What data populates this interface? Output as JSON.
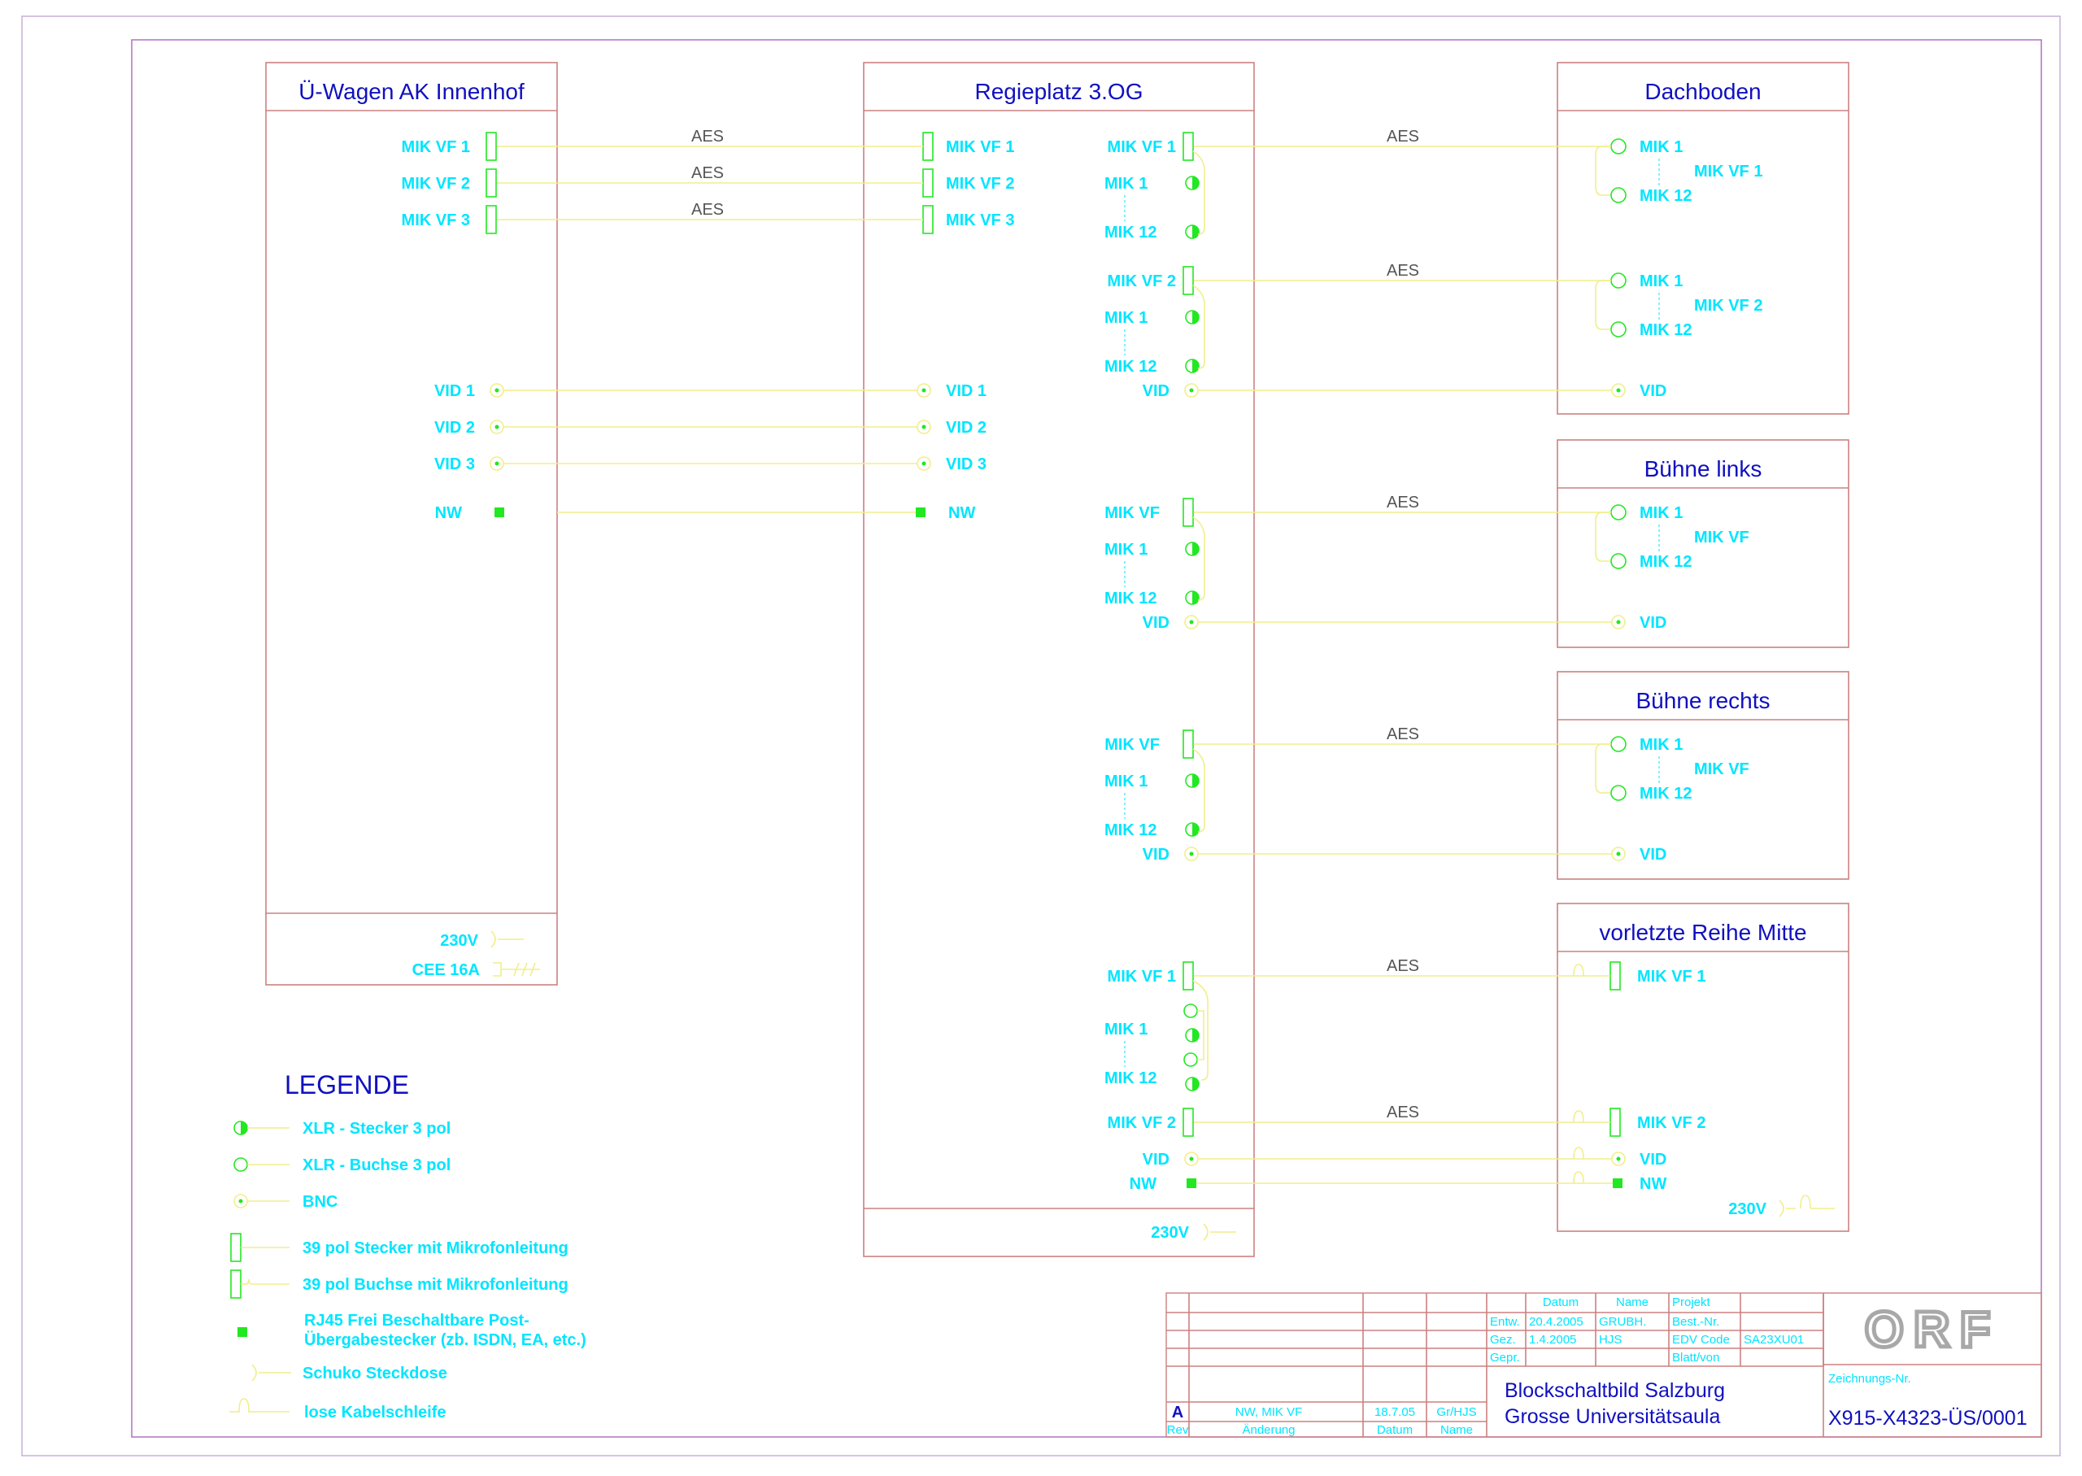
{
  "boxes": {
    "uwagen": {
      "title": "Ü-Wagen AK Innenhof",
      "mik": [
        "MIK VF 1",
        "MIK VF 2",
        "MIK VF 3"
      ],
      "vid": [
        "VID 1",
        "VID 2",
        "VID 3"
      ],
      "nw": "NW",
      "power": [
        "230V",
        "CEE 16A"
      ]
    },
    "regie": {
      "title": "Regieplatz 3.OG",
      "left_mik": [
        "MIK VF 1",
        "MIK VF 2",
        "MIK VF 3"
      ],
      "left_vid": [
        "VID 1",
        "VID 2",
        "VID 3"
      ],
      "left_nw": "NW",
      "g1": {
        "vf": "MIK VF 1",
        "m1": "MIK 1",
        "m12": "MIK 12"
      },
      "g2": {
        "vf": "MIK VF 2",
        "m1": "MIK 1",
        "m12": "MIK 12",
        "vid": "VID"
      },
      "g3": {
        "vf": "MIK VF",
        "m1": "MIK 1",
        "m12": "MIK 12",
        "vid": "VID"
      },
      "g4": {
        "vf": "MIK VF",
        "m1": "MIK 1",
        "m12": "MIK 12",
        "vid": "VID"
      },
      "g5": {
        "vf1": "MIK VF 1",
        "m1": "MIK 1",
        "m12": "MIK 12",
        "vf2": "MIK VF 2",
        "vid": "VID",
        "nw": "NW"
      },
      "power": "230V"
    },
    "dachboden": {
      "title": "Dachboden",
      "a": {
        "m1": "MIK 1",
        "vf": "MIK VF 1",
        "m12": "MIK 12"
      },
      "b": {
        "m1": "MIK 1",
        "vf": "MIK VF 2",
        "m12": "MIK 12"
      },
      "vid": "VID"
    },
    "buehne_links": {
      "title": "Bühne links",
      "m1": "MIK 1",
      "vf": "MIK VF",
      "m12": "MIK 12",
      "vid": "VID"
    },
    "buehne_rechts": {
      "title": "Bühne rechts",
      "m1": "MIK 1",
      "vf": "MIK VF",
      "m12": "MIK 12",
      "vid": "VID"
    },
    "vorletzte": {
      "title": "vorletzte Reihe Mitte",
      "vf1": "MIK VF 1",
      "vf2": "MIK VF 2",
      "vid": "VID",
      "nw": "NW",
      "power": "230V"
    }
  },
  "aes_label": "AES",
  "legend": {
    "title": "LEGENDE",
    "items": [
      "XLR - Stecker 3 pol",
      "XLR - Buchse 3 pol",
      "BNC",
      "39 pol Stecker mit Mikrofonleitung",
      "39 pol Buchse mit Mikrofonleitung",
      "RJ45 Frei Beschaltbare Post-",
      "Übergabestecker (zb. ISDN, EA, etc.)",
      "Schuko Steckdose",
      "lose Kabelschleife"
    ]
  },
  "titleblock": {
    "col_datum": "Datum",
    "col_name": "Name",
    "projekt": "Projekt",
    "entw": "Entw.",
    "entw_datum": "20.4.2005",
    "entw_name": "GRUBH.",
    "best_nr": "Best.-Nr.",
    "gez": "Gez.",
    "gez_datum": "1.4.2005",
    "gez_name": "HJS",
    "edv_code": "EDV Code",
    "edv_value": "SA23XU01",
    "gepr": "Gepr.",
    "blatt": "Blatt/von",
    "title1": "Blockschaltbild  Salzburg",
    "title2": "Grosse Universitätsaula",
    "logo": "ORF",
    "zeichnung_label": "Zeichnungs-Nr.",
    "zeichnung_nr": "X915-X4323-ÜS/0001",
    "rev_letter": "A",
    "rev_change": "NW, MIK VF",
    "rev_date": "18.7.05",
    "rev_name": "Gr/HJS",
    "rev_label": "Rev",
    "aenderung": "Änderung",
    "datum": "Datum",
    "name": "Name"
  },
  "colors": {
    "box_border": "#cc8080",
    "wire": "#f2ee8a",
    "label": "#00e5ff",
    "title": "#1010c0",
    "connector": "#22e822",
    "frame": "#b070c0"
  }
}
